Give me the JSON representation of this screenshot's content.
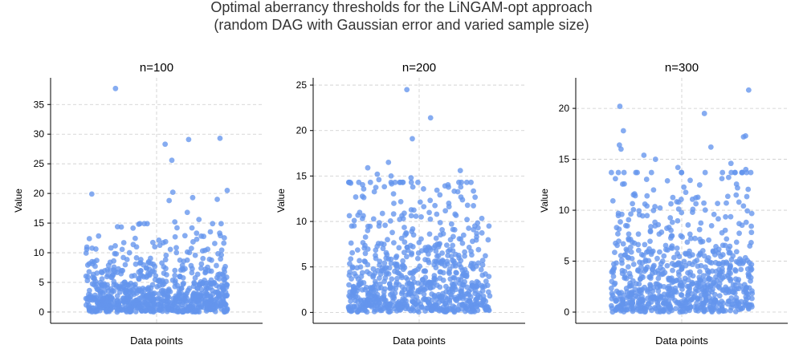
{
  "figure": {
    "title_line1": "Optimal aberrancy thresholds for the LiNGAM-opt approach",
    "title_line2": "(random DAG with Gaussian error and varied sample size)"
  },
  "style": {
    "point_color": "#6495ED",
    "grid_color": "#cccccc",
    "axis_color": "#000000"
  },
  "chart_data": [
    {
      "type": "scatter",
      "title": "n=100",
      "xlabel": "Data points",
      "ylabel": "Value",
      "ylim": [
        -1.9,
        39.5
      ],
      "yticks": [
        0,
        5,
        10,
        15,
        20,
        25,
        30,
        35
      ],
      "grid": true,
      "jitter_range": [
        -0.4,
        0.4
      ],
      "num_points": 800,
      "seed": 1001,
      "dist_mean": 3.8,
      "top_values": [
        37.7,
        29.3,
        29.1,
        28.3,
        25.6,
        20.5,
        20.2,
        19.9,
        19.3,
        19.0,
        18.8,
        16.8,
        15.6,
        15.2
      ]
    },
    {
      "type": "scatter",
      "title": "n=200",
      "xlabel": "Data points",
      "ylabel": "Value",
      "ylim": [
        -1.2,
        25.8
      ],
      "yticks": [
        0,
        5,
        10,
        15,
        20,
        25
      ],
      "grid": true,
      "jitter_range": [
        -0.4,
        0.4
      ],
      "num_points": 800,
      "seed": 2002,
      "dist_mean": 4.3,
      "top_values": [
        24.5,
        21.4,
        19.1,
        16.5,
        15.9,
        15.6,
        15.2,
        15.0,
        14.8,
        14.6
      ]
    },
    {
      "type": "scatter",
      "title": "n=300",
      "xlabel": "Data points",
      "ylabel": "Value",
      "ylim": [
        -1.1,
        23.0
      ],
      "yticks": [
        0,
        5,
        10,
        15,
        20
      ],
      "grid": true,
      "jitter_range": [
        -0.4,
        0.4
      ],
      "num_points": 800,
      "seed": 3003,
      "dist_mean": 4.0,
      "top_values": [
        21.8,
        20.2,
        19.5,
        17.8,
        17.3,
        17.2,
        16.4,
        16.2,
        16.0,
        15.4,
        15.0,
        14.6,
        14.2,
        14.0
      ]
    }
  ]
}
